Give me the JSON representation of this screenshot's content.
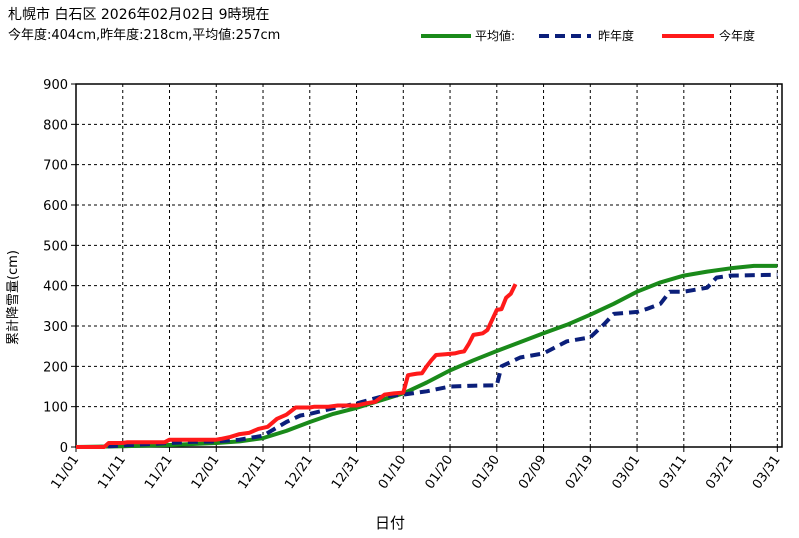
{
  "header": {
    "title": "札幌市  白石区   2026年02月02日 9時現在",
    "subtitle": "今年度:404cm,昨年度:218cm,平均値:257cm"
  },
  "legend": [
    {
      "label": "平均値:",
      "color": "#1a8a1a",
      "style": "solid"
    },
    {
      "label": "昨年度",
      "color": "#0b1f7a",
      "style": "dashed"
    },
    {
      "label": "今年度",
      "color": "#ff1a1a",
      "style": "solid"
    }
  ],
  "chart_data": {
    "type": "line",
    "xlabel": "日付",
    "ylabel": "累計降雪量(cm)",
    "ylim": [
      0,
      900
    ],
    "yticks": [
      0,
      100,
      200,
      300,
      400,
      500,
      600,
      700,
      800,
      900
    ],
    "x_domain_days": [
      0,
      151
    ],
    "xticks": [
      {
        "day": 0,
        "label": "11/01"
      },
      {
        "day": 10,
        "label": "11/11"
      },
      {
        "day": 20,
        "label": "11/21"
      },
      {
        "day": 30,
        "label": "12/01"
      },
      {
        "day": 40,
        "label": "12/11"
      },
      {
        "day": 50,
        "label": "12/21"
      },
      {
        "day": 60,
        "label": "12/31"
      },
      {
        "day": 70,
        "label": "01/10"
      },
      {
        "day": 80,
        "label": "01/20"
      },
      {
        "day": 90,
        "label": "01/30"
      },
      {
        "day": 100,
        "label": "02/09"
      },
      {
        "day": 110,
        "label": "02/19"
      },
      {
        "day": 120,
        "label": "03/01"
      },
      {
        "day": 130,
        "label": "03/11"
      },
      {
        "day": 140,
        "label": "03/21"
      },
      {
        "day": 150,
        "label": "03/31"
      }
    ],
    "grid": true,
    "legend_position": "top-right",
    "series": [
      {
        "name": "平均値:",
        "color": "#1a8a1a",
        "x": [
          0,
          10,
          20,
          30,
          35,
          40,
          45,
          50,
          55,
          60,
          65,
          70,
          75,
          80,
          85,
          90,
          95,
          100,
          105,
          110,
          115,
          120,
          125,
          130,
          135,
          140,
          145,
          150
        ],
        "y": [
          0,
          2,
          5,
          10,
          14,
          22,
          40,
          62,
          82,
          97,
          115,
          133,
          160,
          190,
          215,
          238,
          260,
          282,
          303,
          328,
          355,
          385,
          408,
          425,
          435,
          443,
          449,
          449
        ]
      },
      {
        "name": "昨年度",
        "color": "#0b1f7a",
        "x": [
          0,
          5,
          10,
          15,
          20,
          25,
          30,
          35,
          40,
          45,
          48,
          50,
          55,
          60,
          65,
          70,
          75,
          80,
          85,
          90,
          91,
          95,
          100,
          105,
          110,
          113,
          115,
          120,
          122,
          125,
          127,
          130,
          135,
          137,
          140,
          150
        ],
        "y": [
          0,
          0,
          4,
          7,
          10,
          13,
          14,
          18,
          28,
          62,
          78,
          82,
          96,
          108,
          124,
          130,
          138,
          150,
          152,
          153,
          200,
          222,
          232,
          262,
          272,
          305,
          330,
          335,
          342,
          355,
          385,
          385,
          395,
          420,
          425,
          427
        ]
      },
      {
        "name": "今年度",
        "color": "#ff1a1a",
        "x": [
          0,
          6,
          7,
          10,
          11,
          19,
          20,
          30,
          31,
          33,
          35,
          37,
          39,
          41,
          43,
          45,
          47,
          50,
          51,
          54,
          56,
          60,
          62,
          64,
          66,
          68,
          70,
          71,
          72,
          73,
          74,
          75,
          76,
          77,
          79,
          81,
          82,
          83,
          84,
          85,
          86,
          87,
          88,
          90,
          91,
          92,
          93,
          94
        ],
        "y": [
          0,
          0,
          10,
          10,
          12,
          12,
          18,
          18,
          20,
          25,
          32,
          35,
          45,
          50,
          70,
          80,
          98,
          98,
          100,
          100,
          103,
          103,
          108,
          112,
          130,
          133,
          135,
          178,
          180,
          182,
          183,
          200,
          215,
          228,
          230,
          232,
          235,
          237,
          255,
          278,
          280,
          282,
          290,
          340,
          342,
          370,
          380,
          404
        ]
      }
    ]
  }
}
